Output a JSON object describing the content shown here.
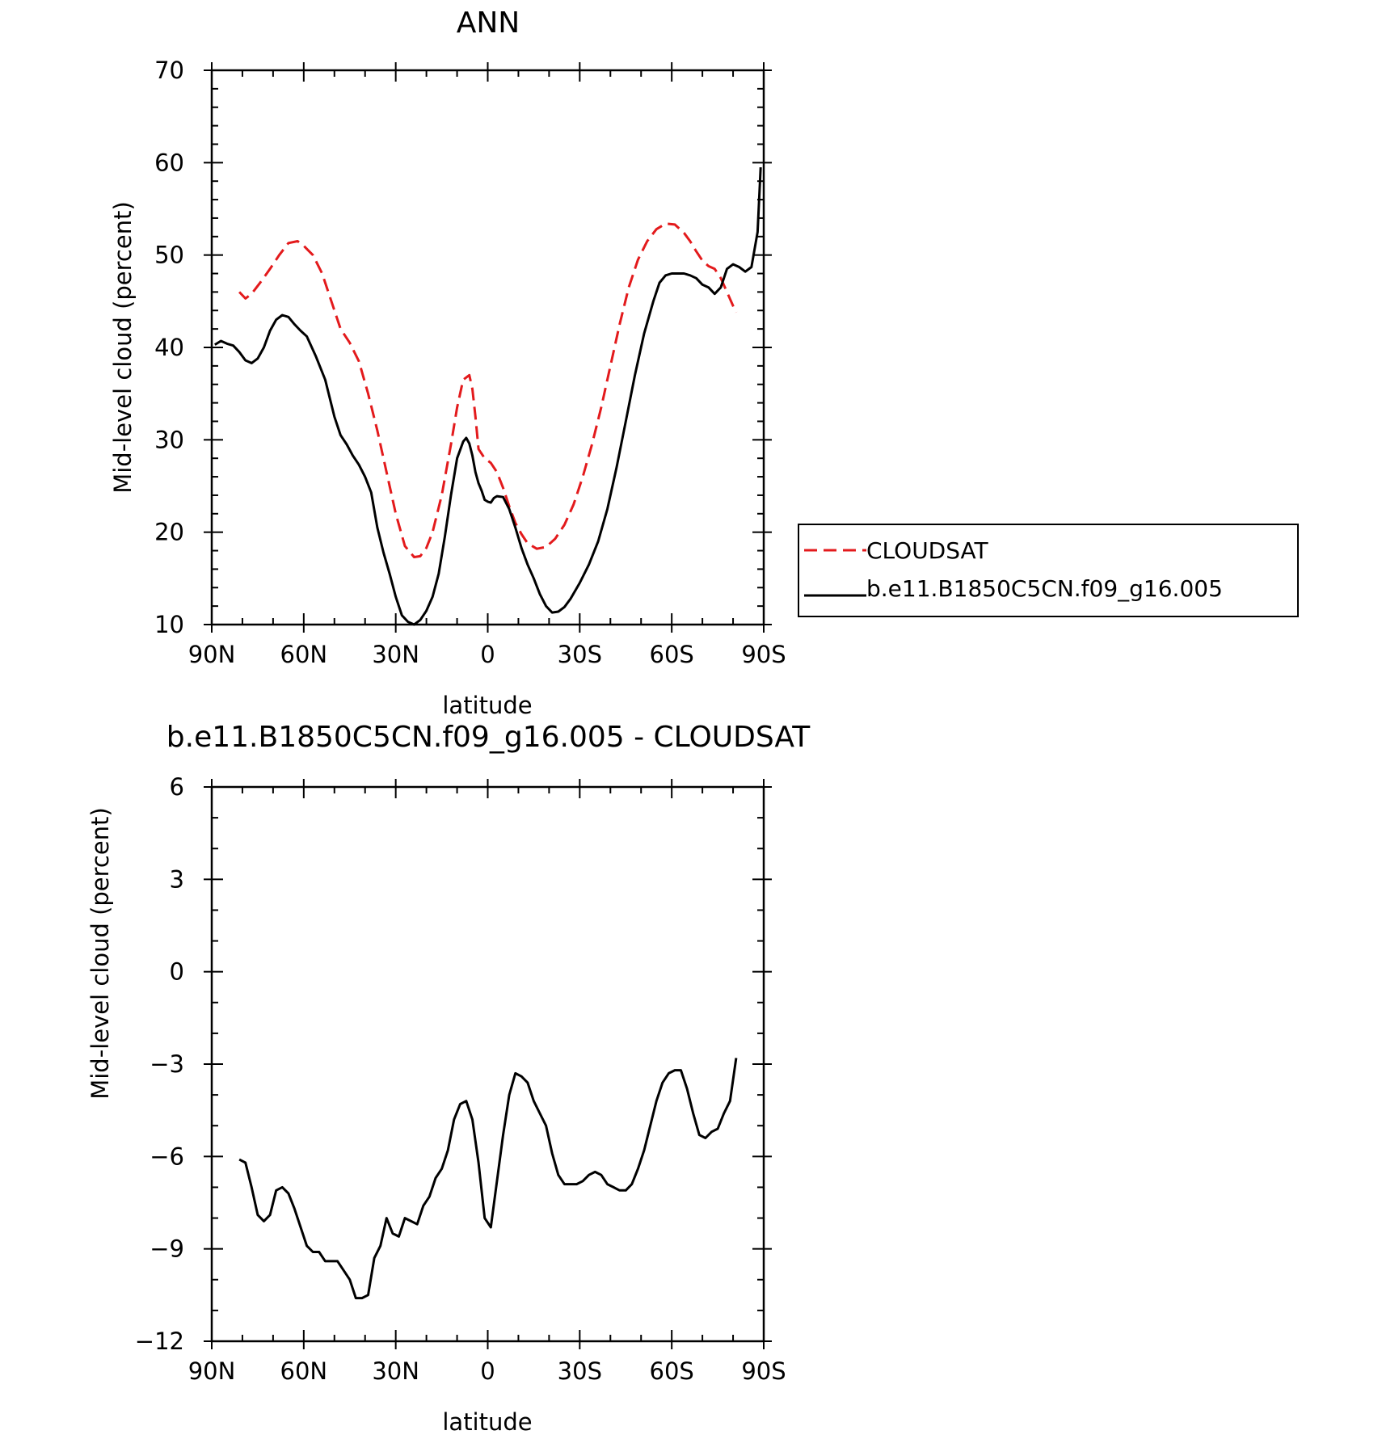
{
  "chart_data": [
    {
      "type": "line",
      "title": "ANN",
      "xlabel": "latitude",
      "ylabel": "Mid-level cloud (percent)",
      "xlim": [
        90,
        -90
      ],
      "ylim": [
        10,
        70
      ],
      "xtick_labels": [
        "90N",
        "60N",
        "30N",
        "0",
        "30S",
        "60S",
        "90S"
      ],
      "ytick_labels": [
        "10",
        "20",
        "30",
        "40",
        "50",
        "60",
        "70"
      ],
      "legend_position": "right",
      "series": [
        {
          "name": "CLOUDSAT",
          "color": "#e31a1c",
          "dash": "dashed",
          "x": [
            81,
            79,
            77,
            74,
            71,
            68,
            65,
            62,
            60,
            57,
            54,
            51,
            48,
            45,
            42,
            39,
            36,
            33,
            30,
            27,
            24,
            22,
            20,
            18,
            15,
            12,
            10,
            8,
            6,
            5,
            4,
            3,
            1,
            -1,
            -3,
            -5,
            -7,
            -9,
            -11,
            -13,
            -16,
            -19,
            -22,
            -25,
            -28,
            -31,
            -34,
            -37,
            -40,
            -43,
            -46,
            -49,
            -52,
            -55,
            -58,
            -61,
            -64,
            -66,
            -68,
            -70,
            -72,
            -74,
            -76,
            -78,
            -80,
            -81
          ],
          "y": [
            46.0,
            45.3,
            45.8,
            47.1,
            48.5,
            50.0,
            51.3,
            51.5,
            51.0,
            50.0,
            48.0,
            45.0,
            42.0,
            40.5,
            38.5,
            35.0,
            31.0,
            26.5,
            22.0,
            18.5,
            17.3,
            17.4,
            18.3,
            20.0,
            24.0,
            29.5,
            33.5,
            36.5,
            37.0,
            35.5,
            32.5,
            29.0,
            28.0,
            27.5,
            26.5,
            24.8,
            22.8,
            21.0,
            19.8,
            18.8,
            18.2,
            18.4,
            19.3,
            20.8,
            23.0,
            26.0,
            29.5,
            33.5,
            38.0,
            42.5,
            46.5,
            49.5,
            51.5,
            52.8,
            53.4,
            53.3,
            52.4,
            51.5,
            50.4,
            49.4,
            48.8,
            48.5,
            47.5,
            46.0,
            44.5,
            43.8
          ]
        },
        {
          "name": "b.e11.B1850C5CN.f09_g16.005",
          "color": "#000000",
          "dash": "solid",
          "x": [
            89,
            87,
            85,
            83,
            81,
            79,
            77,
            75,
            73,
            71,
            69,
            67,
            65,
            63,
            61,
            59,
            56,
            53,
            50,
            48,
            46,
            44,
            42,
            40,
            38,
            36,
            34,
            32,
            30,
            28,
            26,
            24,
            22,
            20,
            18,
            16,
            14,
            12,
            10,
            8,
            7,
            6,
            5,
            4,
            3,
            2,
            1,
            0,
            -1,
            -2,
            -3,
            -5,
            -7,
            -9,
            -11,
            -13,
            -15,
            -17,
            -19,
            -21,
            -23,
            -25,
            -27,
            -30,
            -33,
            -36,
            -39,
            -42,
            -45,
            -48,
            -51,
            -54,
            -56,
            -58,
            -60,
            -62,
            -64,
            -66,
            -68,
            -70,
            -72,
            -74,
            -76,
            -78,
            -80,
            -82,
            -84,
            -86,
            -88,
            -89
          ],
          "y": [
            40.3,
            40.7,
            40.4,
            40.2,
            39.5,
            38.6,
            38.3,
            38.8,
            40.0,
            41.8,
            43.0,
            43.5,
            43.3,
            42.5,
            41.8,
            41.2,
            39.0,
            36.5,
            32.5,
            30.5,
            29.5,
            28.3,
            27.3,
            26.0,
            24.3,
            20.5,
            17.8,
            15.5,
            13.0,
            11.0,
            10.3,
            10.0,
            10.5,
            11.5,
            13.0,
            15.5,
            19.5,
            24.0,
            28.0,
            29.8,
            30.2,
            29.6,
            28.3,
            26.5,
            25.3,
            24.5,
            23.5,
            23.3,
            23.2,
            23.7,
            23.9,
            23.8,
            22.5,
            20.5,
            18.3,
            16.5,
            15.0,
            13.3,
            12.0,
            11.3,
            11.4,
            11.9,
            12.8,
            14.5,
            16.5,
            19.0,
            22.5,
            27.0,
            32.0,
            37.0,
            41.5,
            45.0,
            47.0,
            47.8,
            48.0,
            48.0,
            48.0,
            47.8,
            47.5,
            46.8,
            46.5,
            45.8,
            46.5,
            48.5,
            49.0,
            48.7,
            48.2,
            48.7,
            52.5,
            59.5
          ]
        }
      ]
    },
    {
      "type": "line",
      "title": "b.e11.B1850C5CN.f09_g16.005 - CLOUDSAT",
      "xlabel": "latitude",
      "ylabel": "Mid-level cloud (percent)",
      "xlim": [
        90,
        -90
      ],
      "ylim": [
        -12,
        6
      ],
      "xtick_labels": [
        "90N",
        "60N",
        "30N",
        "0",
        "30S",
        "60S",
        "90S"
      ],
      "ytick_labels": [
        "-12",
        "-9",
        "-6",
        "-3",
        "0",
        "3",
        "6"
      ],
      "series": [
        {
          "color": "#000000",
          "dash": "solid",
          "x": [
            81,
            79,
            77,
            75,
            73,
            71,
            69,
            67,
            65,
            63,
            61,
            59,
            57,
            55,
            53,
            51,
            49,
            47,
            45,
            43,
            41,
            39,
            37,
            35,
            33,
            31,
            29,
            27,
            25,
            23,
            21,
            19,
            17,
            15,
            13,
            11,
            9,
            7,
            5,
            3,
            1,
            -1,
            -3,
            -5,
            -7,
            -9,
            -11,
            -13,
            -15,
            -17,
            -19,
            -21,
            -23,
            -25,
            -27,
            -29,
            -31,
            -33,
            -35,
            -37,
            -39,
            -41,
            -43,
            -45,
            -47,
            -49,
            -51,
            -53,
            -55,
            -57,
            -59,
            -61,
            -63,
            -65,
            -67,
            -69,
            -71,
            -73,
            -75,
            -77,
            -79,
            -81
          ],
          "y": [
            -6.1,
            -6.2,
            -7.0,
            -7.9,
            -8.1,
            -7.9,
            -7.1,
            -7.0,
            -7.2,
            -7.7,
            -8.3,
            -8.9,
            -9.1,
            -9.1,
            -9.4,
            -9.4,
            -9.4,
            -9.7,
            -10.0,
            -10.6,
            -10.6,
            -10.5,
            -9.3,
            -8.9,
            -8.0,
            -8.5,
            -8.6,
            -8.0,
            -8.1,
            -8.2,
            -7.6,
            -7.3,
            -6.7,
            -6.4,
            -5.8,
            -4.8,
            -4.3,
            -4.2,
            -4.8,
            -6.2,
            -8.0,
            -8.3,
            -6.8,
            -5.3,
            -4.0,
            -3.3,
            -3.4,
            -3.6,
            -4.2,
            -4.6,
            -5.0,
            -5.9,
            -6.6,
            -6.9,
            -6.9,
            -6.9,
            -6.8,
            -6.6,
            -6.5,
            -6.6,
            -6.9,
            -7.0,
            -7.1,
            -7.1,
            -6.9,
            -6.4,
            -5.8,
            -5.0,
            -4.2,
            -3.6,
            -3.3,
            -3.2,
            -3.2,
            -3.8,
            -4.6,
            -5.3,
            -5.4,
            -5.2,
            -5.1,
            -4.6,
            -4.2,
            -2.8
          ]
        }
      ]
    }
  ]
}
